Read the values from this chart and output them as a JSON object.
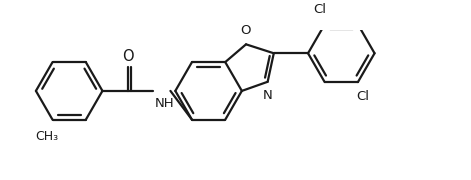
{
  "bg_color": "#ffffff",
  "line_color": "#1a1a1a",
  "line_width": 1.6,
  "font_size": 9.5,
  "atoms": {
    "O_label": "O",
    "N_label": "N",
    "NH_label": "NH",
    "Cl1_label": "Cl",
    "Cl2_label": "Cl",
    "CH3_label": "CH₃"
  }
}
